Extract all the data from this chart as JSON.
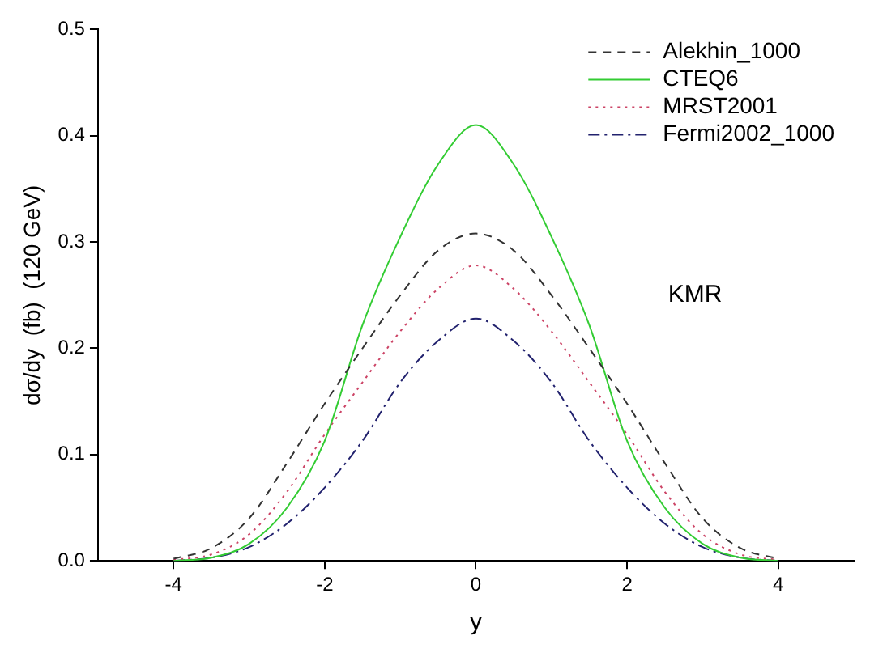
{
  "chart_data": {
    "type": "line",
    "xlabel": "y",
    "ylabel": "dσ/dy  (fb)  (120 GeV)",
    "annotations": [
      "KMR"
    ],
    "x": [
      -4,
      -3.5,
      -3,
      -2.5,
      -2,
      -1.5,
      -1,
      -0.5,
      0,
      0.5,
      1,
      1.5,
      2,
      2.5,
      3,
      3.5,
      4
    ],
    "series": [
      {
        "name": "Alekhin_1000",
        "color": "#333333",
        "line_style": "dashed",
        "values": [
          0.002,
          0.012,
          0.04,
          0.092,
          0.148,
          0.2,
          0.25,
          0.292,
          0.308,
          0.292,
          0.25,
          0.2,
          0.148,
          0.092,
          0.04,
          0.012,
          0.002
        ]
      },
      {
        "name": "CTEQ6",
        "color": "#33cc33",
        "line_style": "solid",
        "values": [
          0,
          0.003,
          0.016,
          0.05,
          0.113,
          0.222,
          0.305,
          0.373,
          0.41,
          0.373,
          0.305,
          0.222,
          0.113,
          0.05,
          0.016,
          0.003,
          0
        ]
      },
      {
        "name": "MRST2001",
        "color": "#cc4466",
        "line_style": "dotted",
        "values": [
          0.001,
          0.006,
          0.025,
          0.065,
          0.119,
          0.168,
          0.216,
          0.256,
          0.278,
          0.256,
          0.216,
          0.168,
          0.119,
          0.065,
          0.025,
          0.006,
          0.001
        ]
      },
      {
        "name": "Fermi2002_1000",
        "color": "#22226e",
        "line_style": "dashdot",
        "values": [
          0,
          0.003,
          0.013,
          0.035,
          0.069,
          0.113,
          0.168,
          0.207,
          0.228,
          0.207,
          0.168,
          0.113,
          0.069,
          0.035,
          0.013,
          0.003,
          0
        ]
      }
    ],
    "xlim": [
      -5,
      5
    ],
    "xticks": [
      -4,
      -2,
      0,
      2,
      4
    ],
    "ylim": [
      0,
      0.5
    ],
    "yticks": [
      {
        "value": 0,
        "label": "0.0"
      },
      0.1,
      0.2,
      0.3,
      0.4,
      0.5
    ],
    "grid": false,
    "legend": "top right",
    "marker": "none"
  }
}
